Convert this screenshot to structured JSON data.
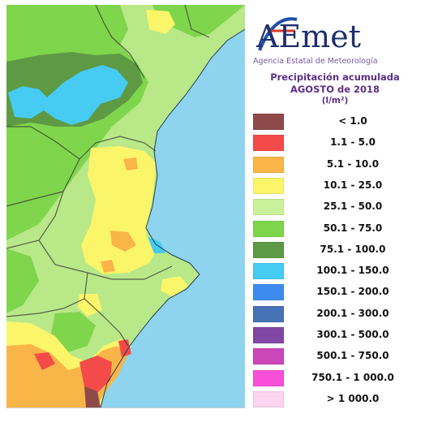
{
  "header": {
    "logo_text": "AEmet",
    "agency": "Agencia Estatal de Meteorología"
  },
  "title": {
    "line1": "Precipitación acumulada",
    "line2": "AGOSTO de 2018",
    "unit": "(l/m²)"
  },
  "legend": [
    {
      "label": "< 1.0",
      "color": "#8e4a4a"
    },
    {
      "label": "1.1 - 5.0",
      "color": "#f34a4a"
    },
    {
      "label": "5.1 - 10.0",
      "color": "#f9b548"
    },
    {
      "label": "10.1 - 25.0",
      "color": "#fbf56a"
    },
    {
      "label": "25.1 - 50.0",
      "color": "#c9f29a"
    },
    {
      "label": "50.1 - 75.0",
      "color": "#7dd54a"
    },
    {
      "label": "75.1 - 100.0",
      "color": "#5d9a45"
    },
    {
      "label": "100.1 - 150.0",
      "color": "#46ccf2"
    },
    {
      "label": "150.1 - 200.0",
      "color": "#3e8bef"
    },
    {
      "label": "200.1 - 300.0",
      "color": "#4671b5"
    },
    {
      "label": "300.1 - 500.0",
      "color": "#8048a4"
    },
    {
      "label": "500.1 - 750.0",
      "color": "#cb46b9"
    },
    {
      "label": "750.1 - 1 000.0",
      "color": "#f94fd8"
    },
    {
      "label": "> 1 000.0",
      "color": "#fcd4ef"
    }
  ],
  "map": {
    "sea_color": "#8fd4ee",
    "region_colors": {
      "light_green": "#b8e888",
      "green": "#7fd54c",
      "dark_green": "#5e9a44",
      "yellow": "#fbf56a",
      "orange": "#f9b548",
      "red": "#f34a4a",
      "brown": "#8e4a4a",
      "cyan": "#46ccf2"
    }
  }
}
